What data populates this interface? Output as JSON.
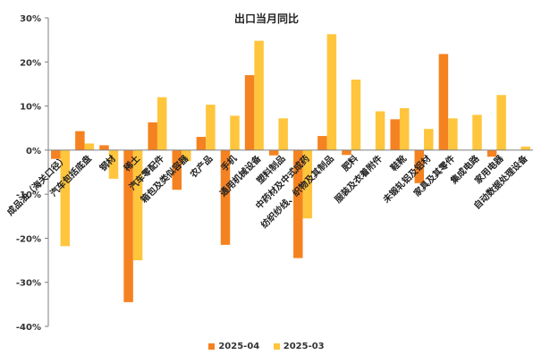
{
  "chart_data": {
    "type": "bar",
    "title": "出口当月同比",
    "xlabel": "",
    "ylabel": "",
    "ylim": [
      -40,
      30
    ],
    "yticks": [
      30,
      20,
      10,
      0,
      -10,
      -20,
      -30,
      -40
    ],
    "ytick_labels": [
      "30%",
      "20%",
      "10%",
      "0%",
      "-10%",
      "-20%",
      "-30%",
      "-40%"
    ],
    "grid": false,
    "legend_position": "bottom",
    "categories": [
      "成品油（海关口径）",
      "汽车包括底盘",
      "钢材",
      "稀土",
      "汽车零配件",
      "箱包及类似容器",
      "农产品",
      "手机",
      "通用机械设备",
      "塑料制品",
      "中药材及中式成药",
      "纺织纱线、织物及其制品",
      "肥料",
      "服装及衣着附件",
      "鞋靴",
      "未锻轧铝及铝材",
      "家具及其零件",
      "集成电路",
      "家用电器",
      "自动数据处理设备"
    ],
    "series": [
      {
        "name": "2025-04",
        "color": "#F58220",
        "values": [
          -2,
          4.3,
          1.1,
          -34.5,
          6.3,
          -9,
          3,
          -21.5,
          17,
          -1.2,
          -24.5,
          3.2,
          -1.1,
          0,
          7,
          -7.5,
          21.8,
          0,
          -1.5,
          0
        ]
      },
      {
        "name": "2025-03",
        "color": "#FFC53D",
        "values": [
          -21.8,
          1.5,
          -6.5,
          -25,
          12,
          -2.5,
          10.3,
          7.8,
          24.8,
          7.2,
          -15.5,
          26.3,
          16,
          8.8,
          9.5,
          4.8,
          7.2,
          8,
          12.5,
          0.8
        ]
      }
    ]
  }
}
